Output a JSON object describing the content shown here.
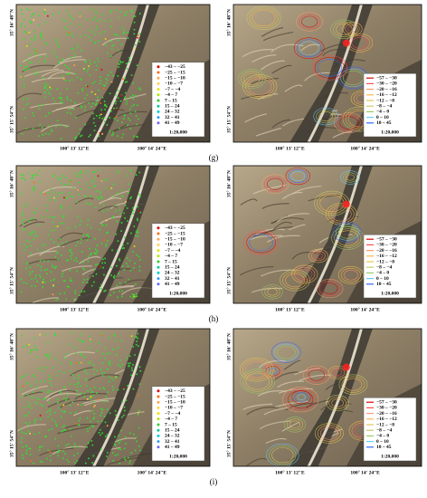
{
  "figure": {
    "rows": [
      {
        "caption": "(g)",
        "left": {
          "lat_labels": [
            "35° 16′ 48″N",
            "35° 15′ 54″N"
          ],
          "lon_labels": [
            "100° 13′ 12″E",
            "100° 14′ 24″E"
          ],
          "legend": [
            "−43 – −25",
            "−25 – −15",
            "−15 – −10",
            "−10 – −7",
            "−7 – −4",
            "−4 – 7",
            "7 – 15",
            "15 – 24",
            "24 – 32",
            "32 – 41",
            "41 – 49"
          ],
          "scale": "1:20,000"
        },
        "right": {
          "lat_labels": [
            "35° 16′ 48″N",
            "35° 15′ 54″N"
          ],
          "lon_labels": [
            "100° 13′ 12″E",
            "100° 14′ 24″E"
          ],
          "legend": [
            "−57 – −30",
            "−30 – −20",
            "−20 – −16",
            "−16 – −12",
            "−12 – −8",
            "−8 – −4",
            "−4 – 0",
            "0 – 10",
            "10 – 45"
          ],
          "scale": "1:20,000"
        }
      },
      {
        "caption": "(h)",
        "left": {
          "lat_labels": [
            "35° 16′ 48″N",
            "35° 15′ 54″N"
          ],
          "lon_labels": [
            "100° 13′ 12″E",
            "100° 14′ 24″E"
          ],
          "legend": [
            "−43 – −25",
            "−25 – −15",
            "−15 – −10",
            "−10 – −7",
            "−7 – −4",
            "−4 – 7",
            "7 – 15",
            "15 – 24",
            "24 – 32",
            "32 – 41",
            "41 – 49"
          ],
          "scale": "1:20,000"
        },
        "right": {
          "lat_labels": [
            "35° 16′ 48″N",
            "35° 15′ 54″N"
          ],
          "lon_labels": [
            "100° 13′ 12″E",
            "100° 14′ 24″E"
          ],
          "legend": [
            "−57 – −30",
            "−30 – −20",
            "−20 – −16",
            "−16 – −12",
            "−12 – −8",
            "−8 – −4",
            "−4 – 0",
            "0 – 10",
            "10 – 45"
          ],
          "scale": "1:20,000"
        }
      },
      {
        "caption": "(i)",
        "left": {
          "lat_labels": [
            "35° 16′ 48″N",
            "35° 15′ 54″N"
          ],
          "lon_labels": [
            "100° 13′ 12″E",
            "100° 14′ 24″E"
          ],
          "legend": [
            "−43 – −25",
            "−25 – −15",
            "−15 – −10",
            "−10 – −7",
            "−7 – −4",
            "−4 – 7",
            "7 – 15",
            "15 – 24",
            "24 – 32",
            "32 – 41",
            "41 – 49"
          ],
          "scale": "1:20,000"
        },
        "right": {
          "lat_labels": [
            "35° 16′ 48″N",
            "35° 15′ 54″N"
          ],
          "lon_labels": [
            "100° 13′ 12″E",
            "100° 14′ 24″E"
          ],
          "legend": [
            "−57 – −30",
            "−30 – −20",
            "−20 – −16",
            "−16 – −12",
            "−12 – −8",
            "−8 – −4",
            "−4 – 0",
            "0 – 10",
            "10 – 45"
          ],
          "scale": "1:20,000"
        }
      }
    ]
  }
}
